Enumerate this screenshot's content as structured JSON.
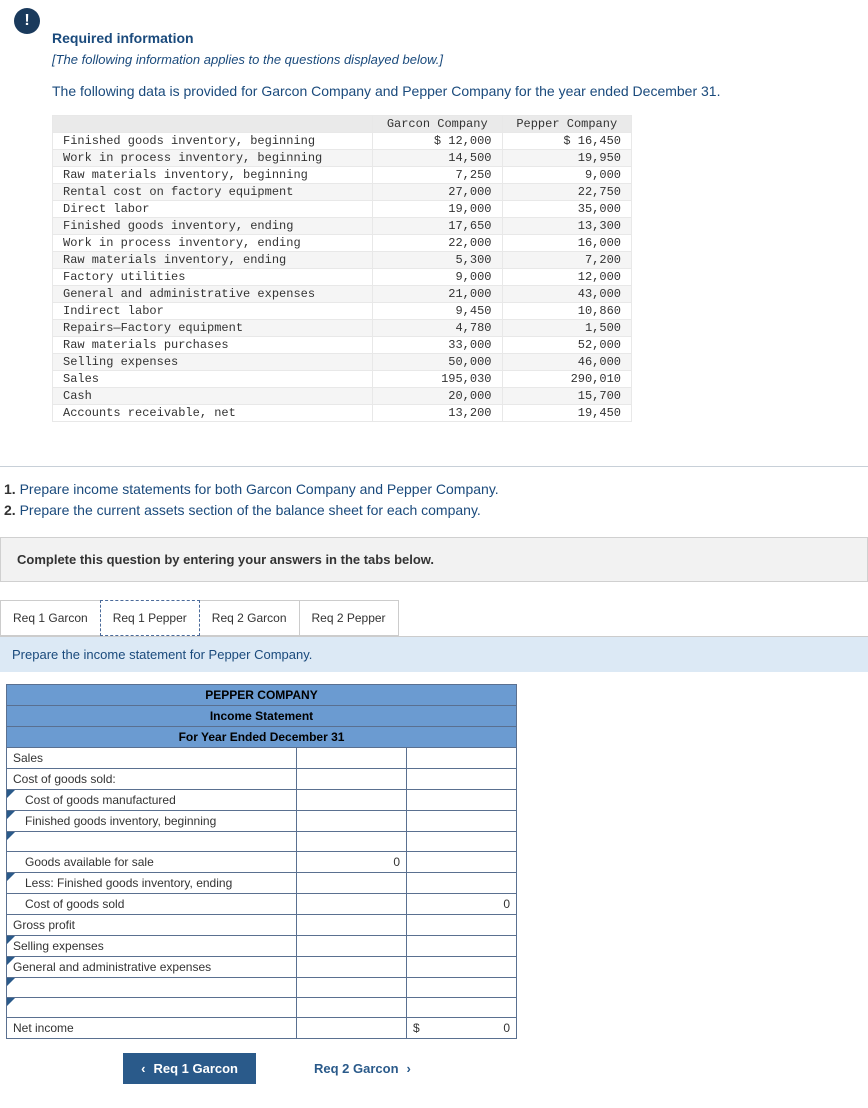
{
  "badge_icon": "!",
  "header": {
    "title": "Required information",
    "subtitle": "[The following information applies to the questions displayed below.]",
    "intro": "The following data is provided for Garcon Company and Pepper Company for the year ended December 31."
  },
  "data_table": {
    "col_headers": [
      "",
      "Garcon Company",
      "Pepper Company"
    ],
    "rows": [
      {
        "label": "Finished goods inventory, beginning",
        "garcon": "$ 12,000",
        "pepper": "$ 16,450"
      },
      {
        "label": "Work in process inventory, beginning",
        "garcon": "14,500",
        "pepper": "19,950"
      },
      {
        "label": "Raw materials inventory, beginning",
        "garcon": "7,250",
        "pepper": "9,000"
      },
      {
        "label": "Rental cost on factory equipment",
        "garcon": "27,000",
        "pepper": "22,750"
      },
      {
        "label": "Direct labor",
        "garcon": "19,000",
        "pepper": "35,000"
      },
      {
        "label": "Finished goods inventory, ending",
        "garcon": "17,650",
        "pepper": "13,300"
      },
      {
        "label": "Work in process inventory, ending",
        "garcon": "22,000",
        "pepper": "16,000"
      },
      {
        "label": "Raw materials inventory, ending",
        "garcon": "5,300",
        "pepper": "7,200"
      },
      {
        "label": "Factory utilities",
        "garcon": "9,000",
        "pepper": "12,000"
      },
      {
        "label": "General and administrative expenses",
        "garcon": "21,000",
        "pepper": "43,000"
      },
      {
        "label": "Indirect labor",
        "garcon": "9,450",
        "pepper": "10,860"
      },
      {
        "label": "Repairs—Factory equipment",
        "garcon": "4,780",
        "pepper": "1,500"
      },
      {
        "label": "Raw materials purchases",
        "garcon": "33,000",
        "pepper": "52,000"
      },
      {
        "label": "Selling expenses",
        "garcon": "50,000",
        "pepper": "46,000"
      },
      {
        "label": "Sales",
        "garcon": "195,030",
        "pepper": "290,010"
      },
      {
        "label": "Cash",
        "garcon": "20,000",
        "pepper": "15,700"
      },
      {
        "label": "Accounts receivable, net",
        "garcon": "13,200",
        "pepper": "19,450"
      }
    ]
  },
  "questions": {
    "q1": "Prepare income statements for both Garcon Company and Pepper Company.",
    "q2": "Prepare the current assets section of the balance sheet for each company."
  },
  "answer_prompt": "Complete this question by entering your answers in the tabs below.",
  "tabs": {
    "t1": "Req 1 Garcon",
    "t2": "Req 1 Pepper",
    "t3": "Req 2 Garcon",
    "t4": "Req 2 Pepper",
    "active": "t2"
  },
  "sub_instruction": "Prepare the income statement for Pepper Company.",
  "worksheet": {
    "title_rows": [
      "PEPPER COMPANY",
      "Income Statement",
      "For Year Ended December 31"
    ],
    "rows": [
      {
        "label": "Sales",
        "indent": 0,
        "tri": false,
        "v1": "",
        "v2": ""
      },
      {
        "label": "Cost of goods sold:",
        "indent": 0,
        "tri": false,
        "v1": "",
        "v2": ""
      },
      {
        "label": "Cost of goods manufactured",
        "indent": 1,
        "tri": true,
        "v1": "",
        "v2": ""
      },
      {
        "label": "Finished goods inventory, beginning",
        "indent": 1,
        "tri": true,
        "v1": "",
        "v2": ""
      },
      {
        "label": "",
        "indent": 1,
        "tri": true,
        "v1": "",
        "v2": ""
      },
      {
        "label": "Goods available for sale",
        "indent": 1,
        "tri": false,
        "v1": "0",
        "v2": ""
      },
      {
        "label": "Less: Finished goods inventory, ending",
        "indent": 1,
        "tri": true,
        "v1": "",
        "v2": ""
      },
      {
        "label": "Cost of goods sold",
        "indent": 1,
        "tri": false,
        "v1": "",
        "v2": "0"
      },
      {
        "label": "Gross profit",
        "indent": 0,
        "tri": false,
        "v1": "",
        "v2": ""
      },
      {
        "label": "Selling expenses",
        "indent": 0,
        "tri": true,
        "v1": "",
        "v2": ""
      },
      {
        "label": "General and administrative expenses",
        "indent": 0,
        "tri": true,
        "v1": "",
        "v2": ""
      },
      {
        "label": "",
        "indent": 0,
        "tri": true,
        "v1": "",
        "v2": ""
      },
      {
        "label": "",
        "indent": 0,
        "tri": true,
        "v1": "",
        "v2": ""
      },
      {
        "label": "Net income",
        "indent": 0,
        "tri": false,
        "v1": "",
        "v2_prefix": "$",
        "v2": "0"
      }
    ]
  },
  "nav": {
    "prev": "Req 1 Garcon",
    "next": "Req 2 Garcon",
    "chev_left": "‹",
    "chev_right": "›"
  }
}
